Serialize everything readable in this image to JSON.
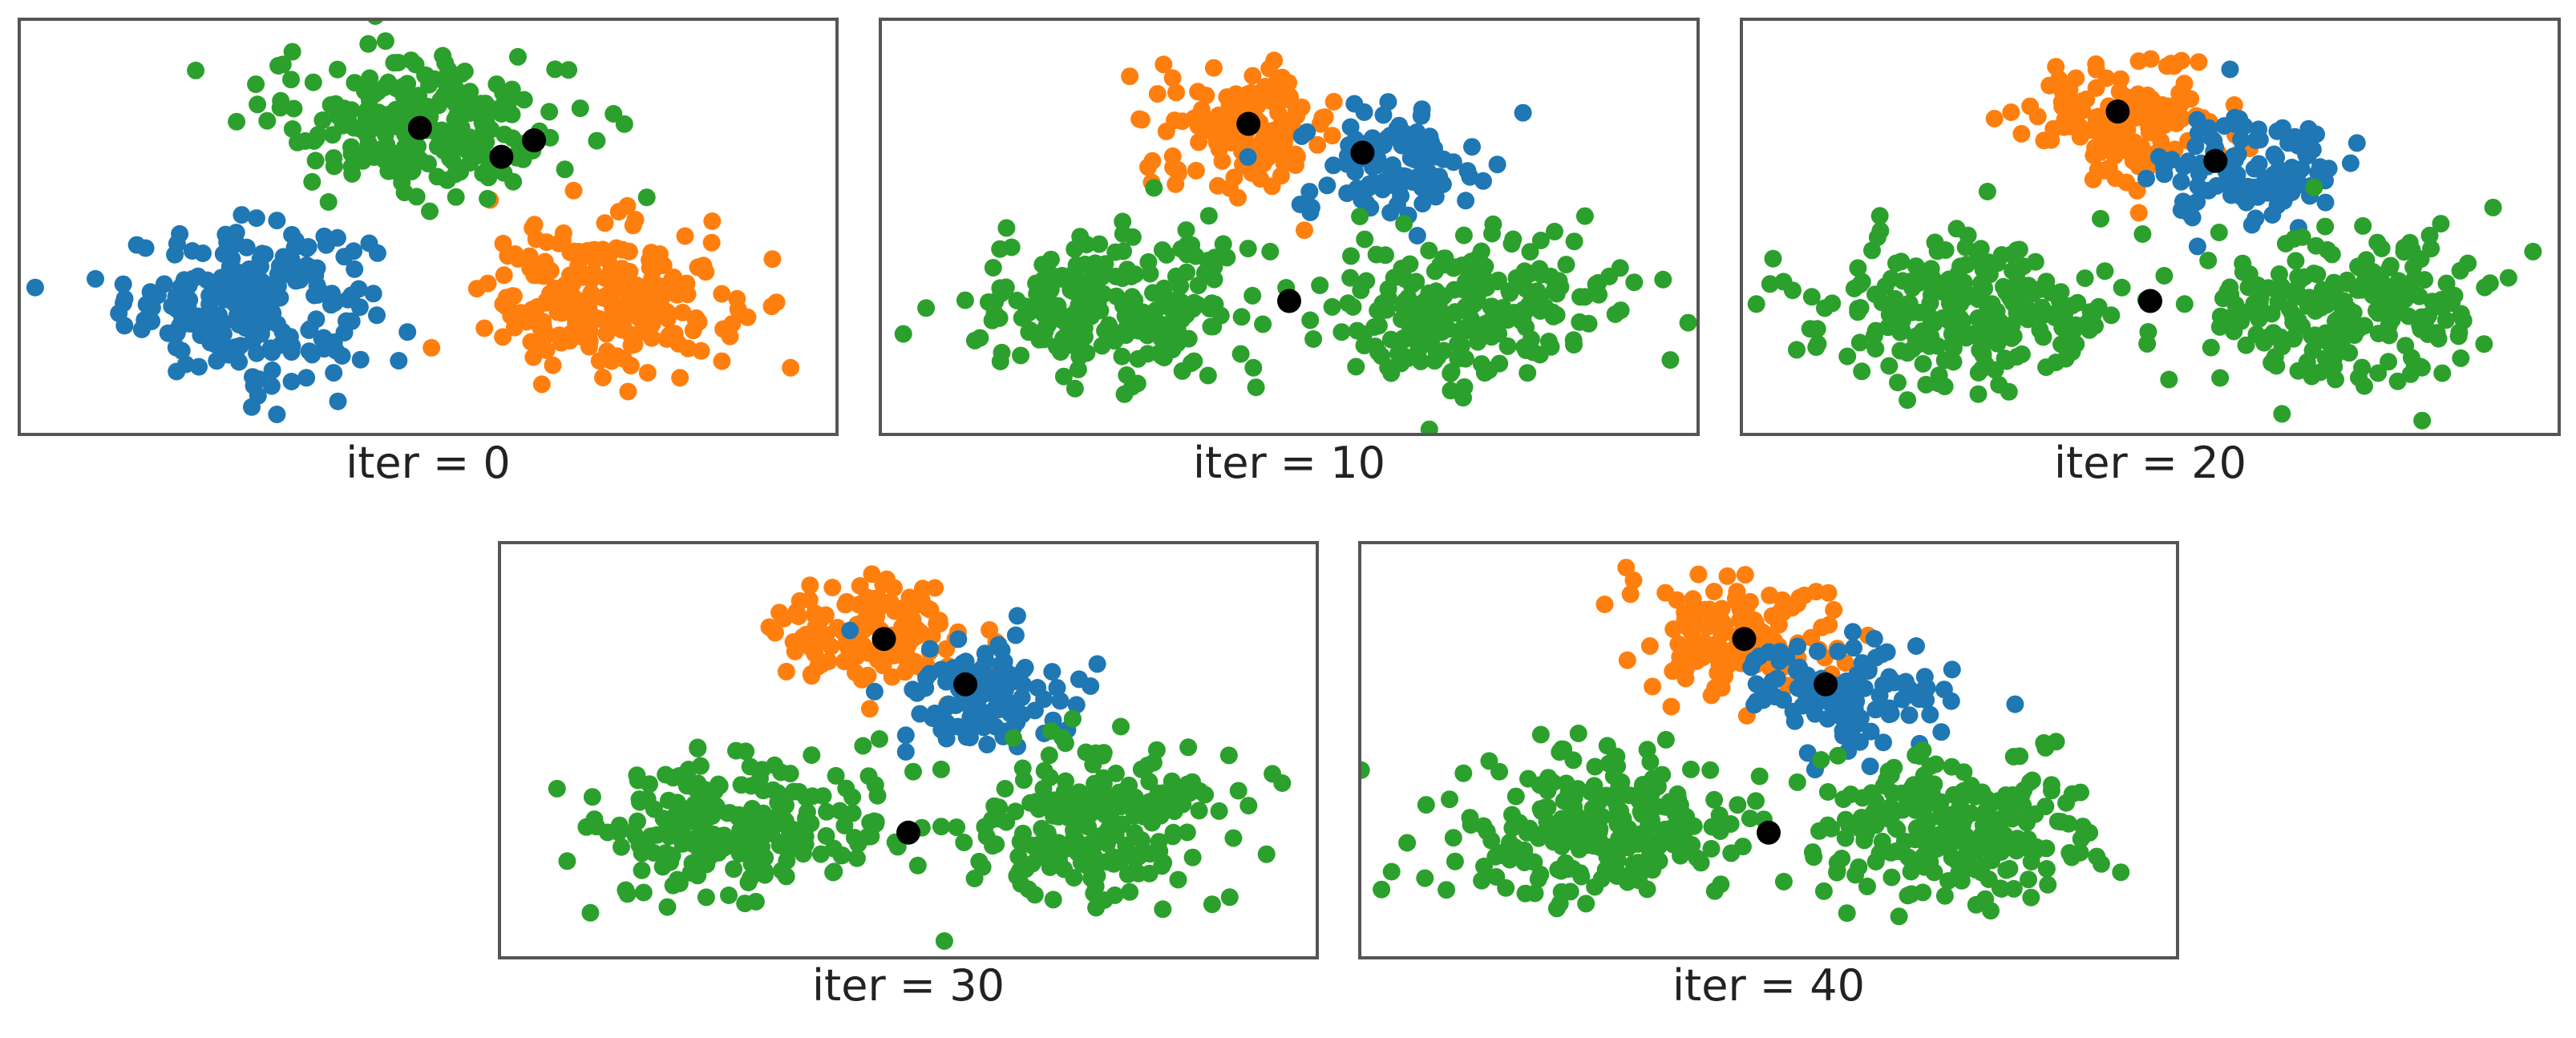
{
  "colors": {
    "blue": "#1f77b4",
    "orange": "#ff7f0e",
    "green": "#2ca02c",
    "centroid": "#000000",
    "frame": "#555555"
  },
  "chart_data": [
    {
      "type": "scatter",
      "title": "",
      "xlabel": "iter = 0",
      "ylabel": "",
      "xlim": [
        0,
        10
      ],
      "ylim": [
        0,
        5
      ],
      "grid": false,
      "clusters": [
        {
          "color": "blue",
          "cx": 2.8,
          "cy": 1.6,
          "sx": 0.75,
          "sy": 0.45,
          "n": 230
        },
        {
          "color": "orange",
          "cx": 7.2,
          "cy": 1.6,
          "sx": 0.75,
          "sy": 0.45,
          "n": 230
        },
        {
          "color": "green",
          "cx": 4.9,
          "cy": 3.8,
          "sx": 0.95,
          "sy": 0.45,
          "n": 240
        }
      ],
      "centroids": [
        [
          4.9,
          3.7
        ],
        [
          5.9,
          3.35
        ],
        [
          6.3,
          3.55
        ]
      ]
    },
    {
      "type": "scatter",
      "title": "",
      "xlabel": "iter = 10",
      "ylabel": "",
      "xlim": [
        0,
        10
      ],
      "ylim": [
        0,
        5
      ],
      "grid": false,
      "clusters": [
        {
          "color": "orange",
          "cx": 4.5,
          "cy": 3.7,
          "sx": 0.55,
          "sy": 0.35,
          "n": 140
        },
        {
          "color": "blue",
          "cx": 6.2,
          "cy": 3.3,
          "sx": 0.55,
          "sy": 0.35,
          "n": 110
        },
        {
          "color": "green",
          "cx": 2.8,
          "cy": 1.5,
          "sx": 0.9,
          "sy": 0.45,
          "n": 230
        },
        {
          "color": "green",
          "cx": 7.2,
          "cy": 1.5,
          "sx": 0.9,
          "sy": 0.45,
          "n": 230
        }
      ],
      "centroids": [
        [
          4.5,
          3.75
        ],
        [
          5.9,
          3.4
        ],
        [
          5.0,
          1.6
        ]
      ]
    },
    {
      "type": "scatter",
      "title": "",
      "xlabel": "iter = 20",
      "ylabel": "",
      "xlim": [
        0,
        10
      ],
      "ylim": [
        0,
        5
      ],
      "grid": false,
      "clusters": [
        {
          "color": "orange",
          "cx": 4.7,
          "cy": 3.8,
          "sx": 0.6,
          "sy": 0.35,
          "n": 140
        },
        {
          "color": "blue",
          "cx": 6.3,
          "cy": 3.2,
          "sx": 0.6,
          "sy": 0.35,
          "n": 110
        },
        {
          "color": "green",
          "cx": 2.8,
          "cy": 1.5,
          "sx": 0.9,
          "sy": 0.45,
          "n": 230
        },
        {
          "color": "green",
          "cx": 7.2,
          "cy": 1.5,
          "sx": 0.9,
          "sy": 0.45,
          "n": 230
        }
      ],
      "centroids": [
        [
          4.6,
          3.9
        ],
        [
          5.8,
          3.3
        ],
        [
          5.0,
          1.6
        ]
      ]
    },
    {
      "type": "scatter",
      "title": "",
      "xlabel": "iter = 30",
      "ylabel": "",
      "xlim": [
        0,
        10
      ],
      "ylim": [
        0,
        5
      ],
      "grid": false,
      "clusters": [
        {
          "color": "orange",
          "cx": 4.6,
          "cy": 3.9,
          "sx": 0.6,
          "sy": 0.35,
          "n": 140
        },
        {
          "color": "blue",
          "cx": 6.0,
          "cy": 3.2,
          "sx": 0.6,
          "sy": 0.35,
          "n": 110
        },
        {
          "color": "green",
          "cx": 2.8,
          "cy": 1.6,
          "sx": 0.9,
          "sy": 0.45,
          "n": 230
        },
        {
          "color": "green",
          "cx": 7.2,
          "cy": 1.6,
          "sx": 0.9,
          "sy": 0.45,
          "n": 230
        }
      ],
      "centroids": [
        [
          4.7,
          3.85
        ],
        [
          5.7,
          3.3
        ],
        [
          5.0,
          1.5
        ]
      ]
    },
    {
      "type": "scatter",
      "title": "",
      "xlabel": "iter = 40",
      "ylabel": "",
      "xlim": [
        0,
        10
      ],
      "ylim": [
        0,
        5
      ],
      "grid": false,
      "clusters": [
        {
          "color": "orange",
          "cx": 4.6,
          "cy": 3.9,
          "sx": 0.6,
          "sy": 0.35,
          "n": 140
        },
        {
          "color": "blue",
          "cx": 6.0,
          "cy": 3.2,
          "sx": 0.6,
          "sy": 0.35,
          "n": 110
        },
        {
          "color": "green",
          "cx": 2.8,
          "cy": 1.6,
          "sx": 0.9,
          "sy": 0.45,
          "n": 230
        },
        {
          "color": "green",
          "cx": 7.2,
          "cy": 1.6,
          "sx": 0.9,
          "sy": 0.45,
          "n": 230
        }
      ],
      "centroids": [
        [
          4.7,
          3.85
        ],
        [
          5.7,
          3.3
        ],
        [
          5.0,
          1.5
        ]
      ]
    }
  ]
}
